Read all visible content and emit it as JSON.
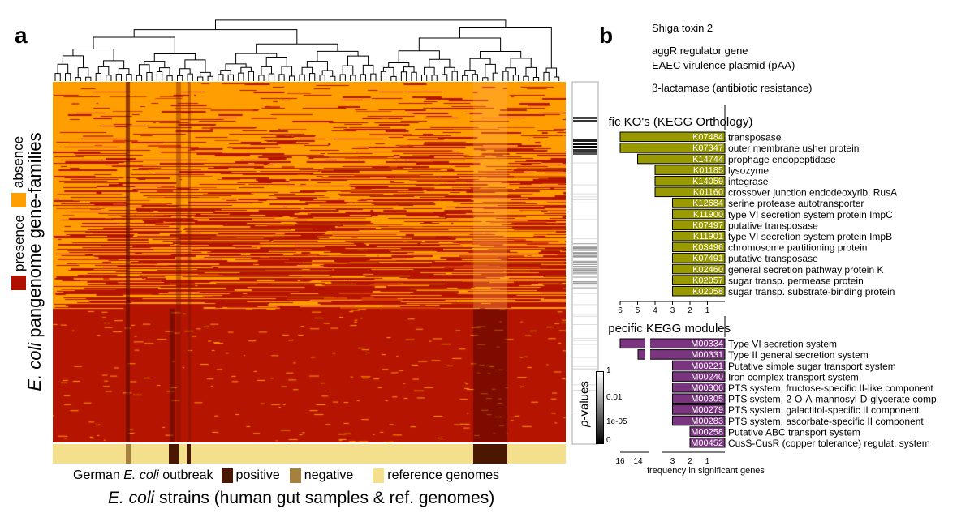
{
  "panels": {
    "a": "a",
    "b": "b"
  },
  "heatmap": {
    "ylabel_italic": "E. coli",
    "ylabel_rest": " pangenome gene-families",
    "legend": [
      {
        "label": "absence",
        "color": "#ff9e00"
      },
      {
        "label": "presence",
        "color": "#b01000"
      }
    ],
    "xlabel_italic": "E. coli",
    "xlabel_rest": " strains (human gut samples & ref. genomes)",
    "outbreak_legend": {
      "prefix": "German ",
      "italic": "E. coli",
      "suffix": " outbreak",
      "items": [
        {
          "label": "positive",
          "color": "#4a1800"
        },
        {
          "label": "negative",
          "color": "#a5803e"
        },
        {
          "label": "reference genomes",
          "color": "#f3df8c"
        }
      ]
    }
  },
  "annotations": [
    "Shiga toxin 2",
    "aggR regulator gene",
    "EAEC virulence plasmid (pAA)",
    "β-lactamase (antibiotic resistance)"
  ],
  "pvalue": {
    "label_italic": "p",
    "label_rest": "-values",
    "ticks": [
      "1",
      "0.01",
      "1e-05",
      "0"
    ]
  },
  "chart_data": [
    {
      "type": "bar",
      "title": "Outbreak specific KO's (KEGG Orthology)",
      "orientation": "horizontal-leftward",
      "color": "#999900",
      "categories": [
        "K07484",
        "K07347",
        "K14744",
        "K01185",
        "K14059",
        "K01160",
        "K12684",
        "K11900",
        "K07497",
        "K11901",
        "K03496",
        "K07491",
        "K02460",
        "K02057",
        "K02058"
      ],
      "descriptions": [
        "transposase",
        "outer membrane usher protein",
        "prophage endopeptidase",
        "lysozyme",
        "integrase",
        "crossover junction endodeoxyrib. RusA",
        "serine protease autotransporter",
        "type VI secretion system protein ImpC",
        "putative transposase",
        "type VI secretion system protein ImpB",
        "chromosome partitioning protein",
        "putative transposase",
        "general secretion pathway protein K",
        "sugar transp. permease protein",
        "sugar transp. substrate-binding protein"
      ],
      "values": [
        6,
        6,
        5,
        4,
        4,
        4,
        3,
        3,
        3,
        3,
        3,
        3,
        3,
        3,
        3
      ],
      "xticks": [
        "6",
        "5",
        "4",
        "3",
        "2",
        "1"
      ],
      "xlim": [
        0,
        6
      ]
    },
    {
      "type": "bar",
      "title": "Outbreak specific KEGG modules",
      "orientation": "horizontal-leftward",
      "color": "#7b3580",
      "axis_break": true,
      "categories": [
        "M00334",
        "M00331",
        "M00221",
        "M00240",
        "M00306",
        "M00305",
        "M00279",
        "M00283",
        "M00258",
        "M00452"
      ],
      "descriptions": [
        "Type VI secretion system",
        "Type II general secretion system",
        "Putative simple sugar transport system",
        "Iron complex transport system",
        "PTS system, fructose-specific II-like component",
        "PTS system, 2-O-A-mannosyl-D-glycerate comp.",
        "PTS system, galactitol-specific II component",
        "PTS system, ascorbate-specific II component",
        "Putative ABC transport system",
        "CusS-CusR (copper tolerance) regulat. system"
      ],
      "values": [
        16,
        14,
        3,
        3,
        3,
        3,
        3,
        3,
        2,
        2
      ],
      "xticks": [
        "16",
        "14",
        "3",
        "2",
        "1"
      ],
      "xlabel": "frequency in significant genes"
    }
  ]
}
